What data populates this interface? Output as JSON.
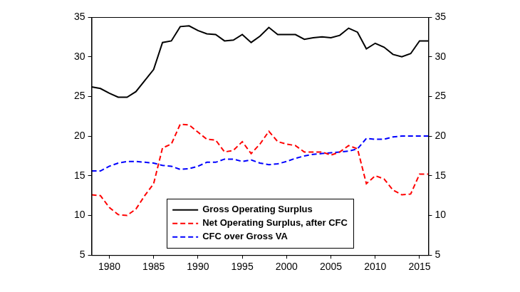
{
  "chart_data": {
    "type": "line",
    "x": [
      1978,
      1979,
      1980,
      1981,
      1982,
      1983,
      1984,
      1985,
      1986,
      1987,
      1988,
      1989,
      1990,
      1991,
      1992,
      1993,
      1994,
      1995,
      1996,
      1997,
      1998,
      1999,
      2000,
      2001,
      2002,
      2003,
      2004,
      2005,
      2006,
      2007,
      2008,
      2009,
      2010,
      2011,
      2012,
      2013,
      2014,
      2015,
      2016
    ],
    "series": [
      {
        "name": "Gross Operating Surplus",
        "color": "#000000",
        "line_style": "solid",
        "values": [
          26.2,
          26.0,
          25.4,
          24.9,
          24.9,
          25.6,
          27.0,
          28.4,
          31.8,
          32.0,
          33.8,
          33.9,
          33.3,
          32.9,
          32.8,
          32.0,
          32.1,
          32.8,
          31.8,
          32.6,
          33.7,
          32.8,
          32.8,
          32.8,
          32.2,
          32.4,
          32.5,
          32.4,
          32.7,
          33.6,
          33.1,
          31.0,
          31.7,
          31.2,
          30.3,
          30.0,
          30.4,
          32.0,
          32.0
        ]
      },
      {
        "name": "Net Operating Surplus, after CFC",
        "color": "#ff0000",
        "line_style": "dashed",
        "values": [
          12.6,
          12.5,
          11.0,
          10.1,
          10.0,
          10.8,
          12.5,
          14.0,
          18.5,
          19.0,
          21.5,
          21.4,
          20.5,
          19.6,
          19.5,
          18.0,
          18.2,
          19.3,
          17.8,
          19.0,
          20.6,
          19.3,
          19.0,
          18.8,
          18.0,
          18.0,
          18.0,
          17.6,
          18.0,
          18.8,
          18.4,
          14.0,
          15.0,
          14.6,
          13.2,
          12.6,
          12.7,
          15.2,
          15.2
        ]
      },
      {
        "name": "CFC over Gross VA",
        "color": "#0000ff",
        "line_style": "dashed",
        "values": [
          15.6,
          15.6,
          16.2,
          16.6,
          16.8,
          16.8,
          16.7,
          16.6,
          16.3,
          16.2,
          15.8,
          15.9,
          16.2,
          16.7,
          16.7,
          17.1,
          17.1,
          16.8,
          17.0,
          16.6,
          16.4,
          16.5,
          16.8,
          17.2,
          17.5,
          17.7,
          17.8,
          17.9,
          18.0,
          18.1,
          18.4,
          19.7,
          19.6,
          19.6,
          19.9,
          20.0,
          20.0,
          20.0,
          20.0
        ]
      }
    ],
    "xlim": [
      1978,
      2016
    ],
    "xticks": [
      1980,
      1985,
      1990,
      1995,
      2000,
      2005,
      2010,
      2015
    ],
    "ylim": [
      5,
      35
    ],
    "yticks": [
      5,
      10,
      15,
      20,
      25,
      30,
      35
    ],
    "y2lim": [
      5,
      35
    ],
    "y2ticks": [
      5,
      10,
      15,
      20,
      25,
      30,
      35
    ],
    "grid": false,
    "legend": "bottom",
    "marker": "none"
  }
}
